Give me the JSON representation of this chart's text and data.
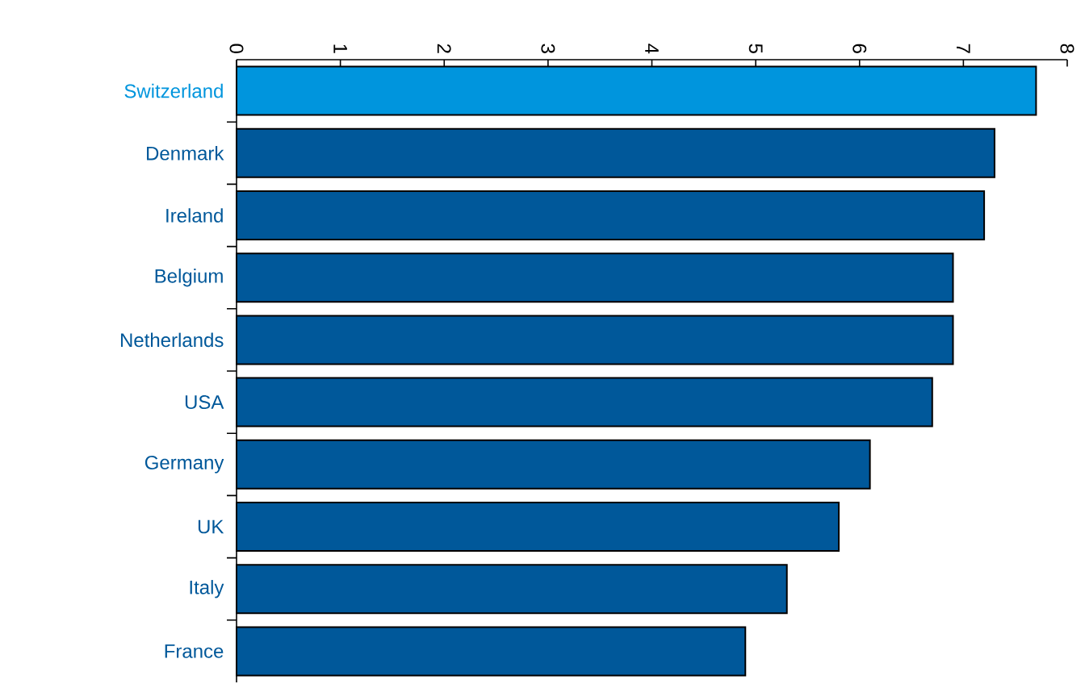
{
  "chart_data": {
    "type": "bar",
    "orientation": "horizontal",
    "categories": [
      "Switzerland",
      "Denmark",
      "Ireland",
      "Belgium",
      "Netherlands",
      "USA",
      "Germany",
      "UK",
      "Italy",
      "France"
    ],
    "values": [
      7.7,
      7.3,
      7.2,
      6.9,
      6.9,
      6.7,
      6.1,
      5.8,
      5.3,
      4.9
    ],
    "colors": [
      "#0095dd",
      "#00589a",
      "#00589a",
      "#00589a",
      "#00589a",
      "#00589a",
      "#00589a",
      "#00589a",
      "#00589a",
      "#00589a"
    ],
    "xlim": [
      0,
      8
    ],
    "xticks": [
      0,
      1,
      2,
      3,
      4,
      5,
      6,
      7,
      8
    ],
    "grid": false
  }
}
